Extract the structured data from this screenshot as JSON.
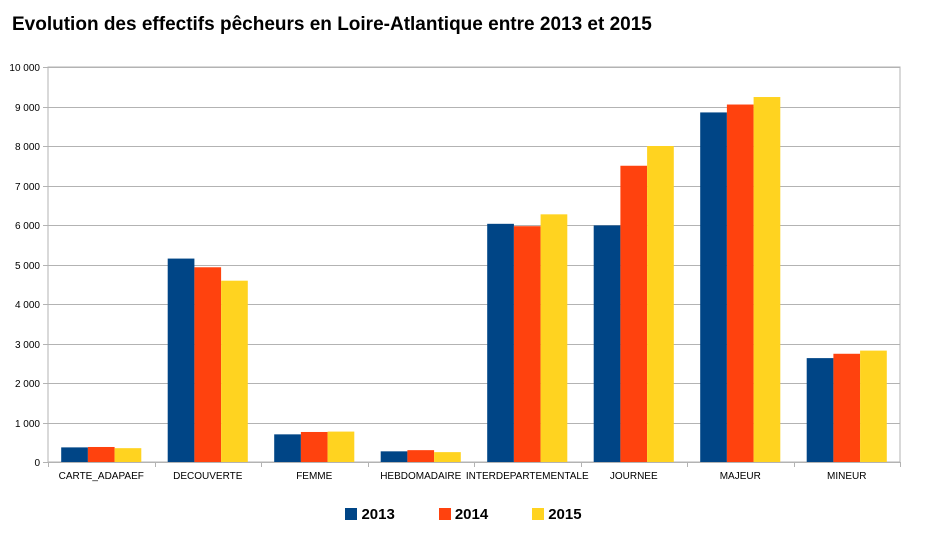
{
  "chart_data": {
    "type": "bar",
    "title": "Evolution des effectifs pêcheurs en Loire-Atlantique entre 2013 et 2015",
    "categories": [
      "CARTE_ADAPAEF",
      "DECOUVERTE",
      "FEMME",
      "HEBDOMADAIRE",
      "INTERDEPARTEMENTALE",
      "JOURNEE",
      "MAJEUR",
      "MINEUR"
    ],
    "series": [
      {
        "name": "2013",
        "color": "#004586",
        "values": [
          370,
          5150,
          700,
          270,
          6030,
          5990,
          8850,
          2630
        ]
      },
      {
        "name": "2014",
        "color": "#ff420e",
        "values": [
          380,
          4930,
          760,
          300,
          5970,
          7500,
          9050,
          2740
        ]
      },
      {
        "name": "2015",
        "color": "#ffd320",
        "values": [
          350,
          4590,
          770,
          250,
          6270,
          8000,
          9240,
          2820
        ]
      }
    ],
    "ylim": [
      0,
      10000
    ],
    "yticks": [
      "0",
      "1 000",
      "2 000",
      "3 000",
      "4 000",
      "5 000",
      "6 000",
      "7 000",
      "8 000",
      "9 000",
      "10 000"
    ],
    "grid": true,
    "legend_position": "bottom"
  }
}
